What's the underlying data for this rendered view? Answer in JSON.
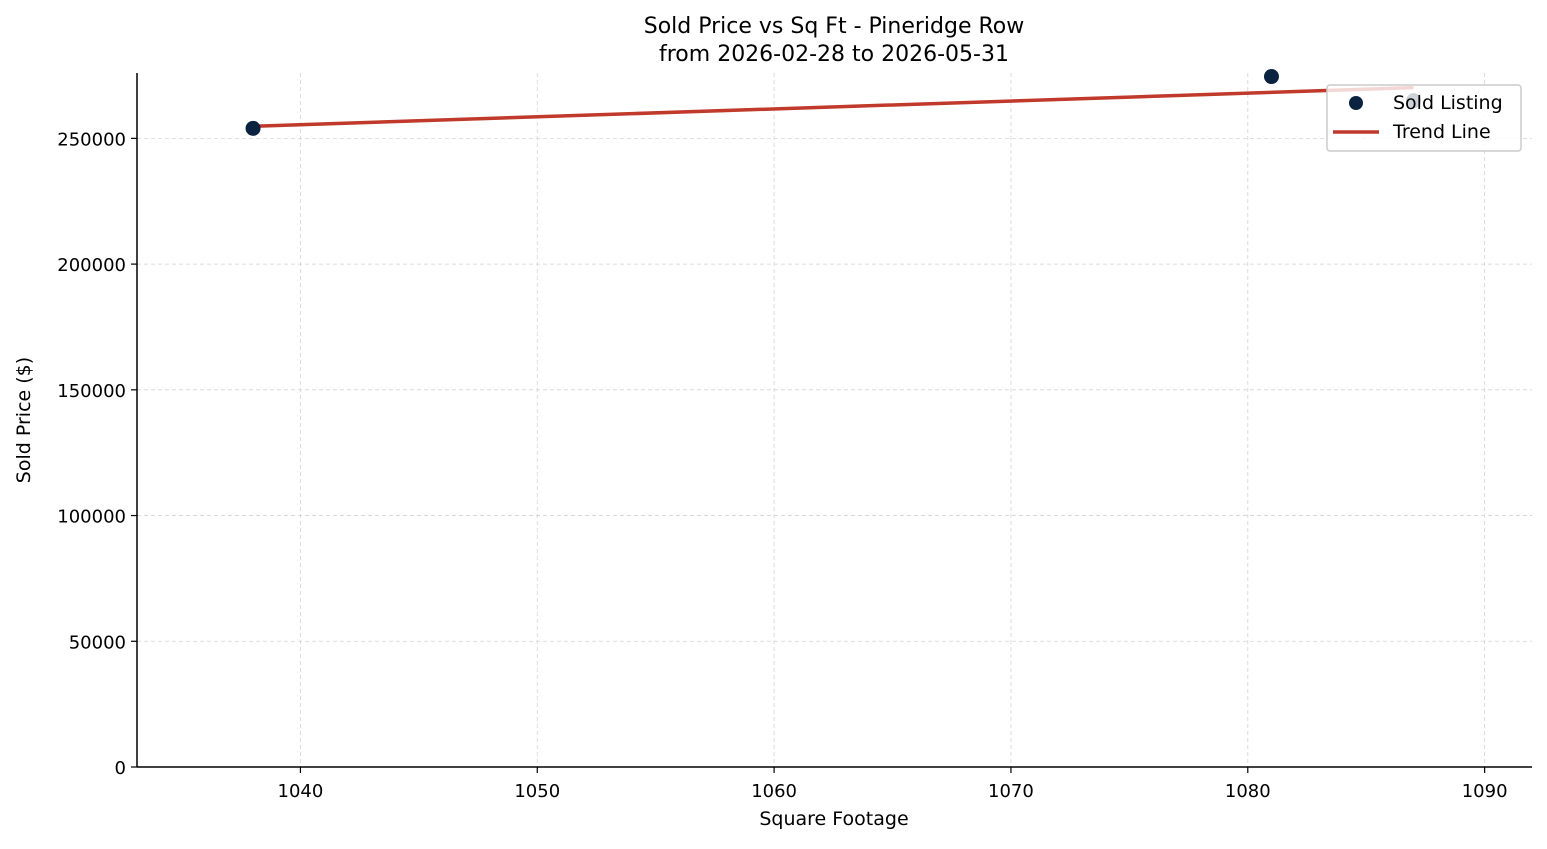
{
  "chart_data": {
    "type": "scatter",
    "title": "Sold Price vs Sq Ft - Pineridge Row",
    "subtitle": "from 2026-02-28 to 2026-05-31",
    "xlabel": "Square Footage",
    "ylabel": "Sold Price ($)",
    "xlim": [
      1033.1,
      1092.0
    ],
    "ylim": [
      0,
      276000
    ],
    "x_ticks": [
      1040,
      1050,
      1060,
      1070,
      1080,
      1090
    ],
    "y_ticks": [
      0,
      50000,
      100000,
      150000,
      200000,
      250000
    ],
    "grid": true,
    "legend_position": "top-right",
    "series": [
      {
        "name": "Sold Listing",
        "kind": "scatter",
        "color": "#0b2340",
        "points": [
          {
            "x": 1038,
            "y": 254000
          },
          {
            "x": 1081,
            "y": 274600
          },
          {
            "x": 1087,
            "y": 265000
          }
        ]
      },
      {
        "name": "Trend Line",
        "kind": "line",
        "color": "#c0392b",
        "points": [
          {
            "x": 1038,
            "y": 254800
          },
          {
            "x": 1087,
            "y": 270200
          }
        ]
      }
    ]
  }
}
